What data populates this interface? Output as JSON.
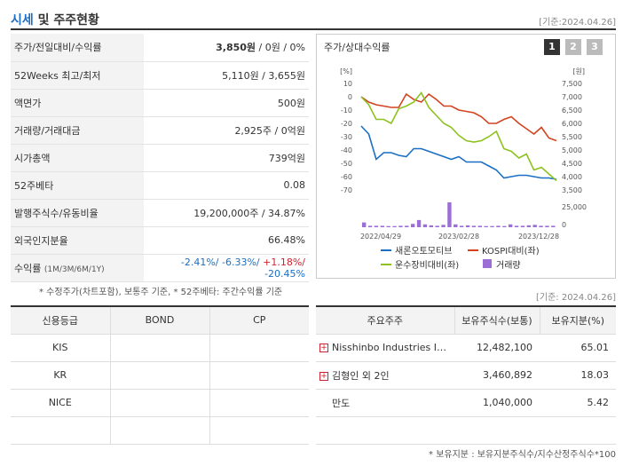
{
  "header": {
    "title_accent": "시세",
    "title_rest": "및 주주현황",
    "date": "[기준:2024.04.26]"
  },
  "info": [
    {
      "label": "주가/전일대비/수익률",
      "value_main": "3,850원",
      "value_rest": " / 0원 / 0%"
    },
    {
      "label": "52Weeks 최고/최저",
      "value": "5,110원 / 3,655원"
    },
    {
      "label": "액면가",
      "value": "500원"
    },
    {
      "label": "거래량/거래대금",
      "value": "2,925주 / 0억원"
    },
    {
      "label": "시가총액",
      "value": "739억원"
    },
    {
      "label": "52주베타",
      "value": "0.08"
    },
    {
      "label": "발행주식수/유동비율",
      "value": "19,200,000주 / 34.87%"
    },
    {
      "label": "외국인지분율",
      "value": "66.48%"
    }
  ],
  "returns": {
    "label": "수익률",
    "label_small": "(1M/3M/6M/1Y)",
    "v1": "-2.41%/",
    "v2": " -6.33%/",
    "v3": " +1.18%/",
    "v4": " -20.45%"
  },
  "notes": {
    "left": "* 수정주가(차트포함), 보통주 기준, * 52주베타: 주간수익률 기준",
    "right": "[기준: 2024.04.26]",
    "bottom": "* 보유지분 : 보유지분주식수/지수산정주식수*100"
  },
  "chart_panel": {
    "title": "주가/상대수익률",
    "tabs": [
      "1",
      "2",
      "3"
    ]
  },
  "chart_data": {
    "type": "line",
    "left_axis": {
      "unit": "[%]",
      "ticks": [
        "10",
        "0",
        "-10",
        "-20",
        "-30",
        "-40",
        "-50",
        "-60",
        "-70"
      ],
      "range": [
        -70,
        10
      ]
    },
    "right_axis": {
      "unit": "[원]",
      "ticks": [
        "7,500",
        "7,000",
        "6,500",
        "6,000",
        "5,500",
        "5,000",
        "4,500",
        "4,000",
        "3,500"
      ],
      "range": [
        3500,
        7500
      ]
    },
    "volume_axis": {
      "ticks": [
        "25,000",
        "0"
      ],
      "range": [
        0,
        25000
      ]
    },
    "x_ticks": [
      "2022/04/29",
      "2023/02/28",
      "2023/12/28"
    ],
    "series": [
      {
        "name": "새론오토모티브",
        "color": "#1a6fc4",
        "values": [
          -22,
          -28,
          -47,
          -42,
          -42,
          -44,
          -45,
          -39,
          -39,
          -41,
          -43,
          -45,
          -47,
          -45,
          -49,
          -49,
          -49,
          -52,
          -55,
          -61,
          -60,
          -59,
          -59,
          -60,
          -61,
          -61,
          -62
        ]
      },
      {
        "name": "KOSPI대비(좌)",
        "color": "#d3431f",
        "values": [
          0,
          -4,
          -6,
          -7,
          -8,
          -8,
          2,
          -2,
          -4,
          2,
          -2,
          -7,
          -7,
          -10,
          -11,
          -12,
          -15,
          -20,
          -20,
          -17,
          -15,
          -20,
          -24,
          -28,
          -23,
          -31,
          -33
        ]
      },
      {
        "name": "운수장비대비(좌)",
        "color": "#8dc21f",
        "values": [
          0,
          -6,
          -17,
          -17,
          -20,
          -9,
          -7,
          -4,
          3,
          -8,
          -14,
          -20,
          -23,
          -29,
          -33,
          -34,
          -33,
          -30,
          -26,
          -39,
          -41,
          -46,
          -43,
          -55,
          -53,
          -58,
          -63
        ]
      }
    ],
    "volume": {
      "name": "거래량",
      "color": "#9b6fd6",
      "values": [
        5000,
        1500,
        1500,
        1500,
        1200,
        1200,
        1500,
        1500,
        3500,
        7500,
        3000,
        2000,
        1500,
        2500,
        26000,
        3000,
        1500,
        2000,
        1500,
        1500,
        1200,
        1200,
        1500,
        1200,
        3000,
        1500,
        1500,
        2000,
        2500,
        1500,
        1500,
        1500
      ]
    },
    "legend": [
      "새론오토모티브",
      "KOSPI대비(좌)",
      "운수장비대비(좌)",
      "거래량"
    ],
    "legend_position": "bottom",
    "grid": false
  },
  "credit": {
    "headers": [
      "신용등급",
      "BOND",
      "CP"
    ],
    "rows": [
      [
        "KIS",
        "",
        ""
      ],
      [
        "KR",
        "",
        ""
      ],
      [
        "NICE",
        "",
        ""
      ],
      [
        "",
        "",
        ""
      ]
    ]
  },
  "holders": {
    "headers": [
      "주요주주",
      "보유주식수(보통)",
      "보유지분(%)"
    ],
    "rows": [
      {
        "name": "Nisshinbo Industries I…",
        "shares": "12,482,100",
        "pct": "65.01",
        "expand": true
      },
      {
        "name": "김형인 외 2인",
        "shares": "3,460,892",
        "pct": "18.03",
        "expand": true
      },
      {
        "name": "만도",
        "shares": "1,040,000",
        "pct": "5.42",
        "expand": false
      }
    ]
  }
}
